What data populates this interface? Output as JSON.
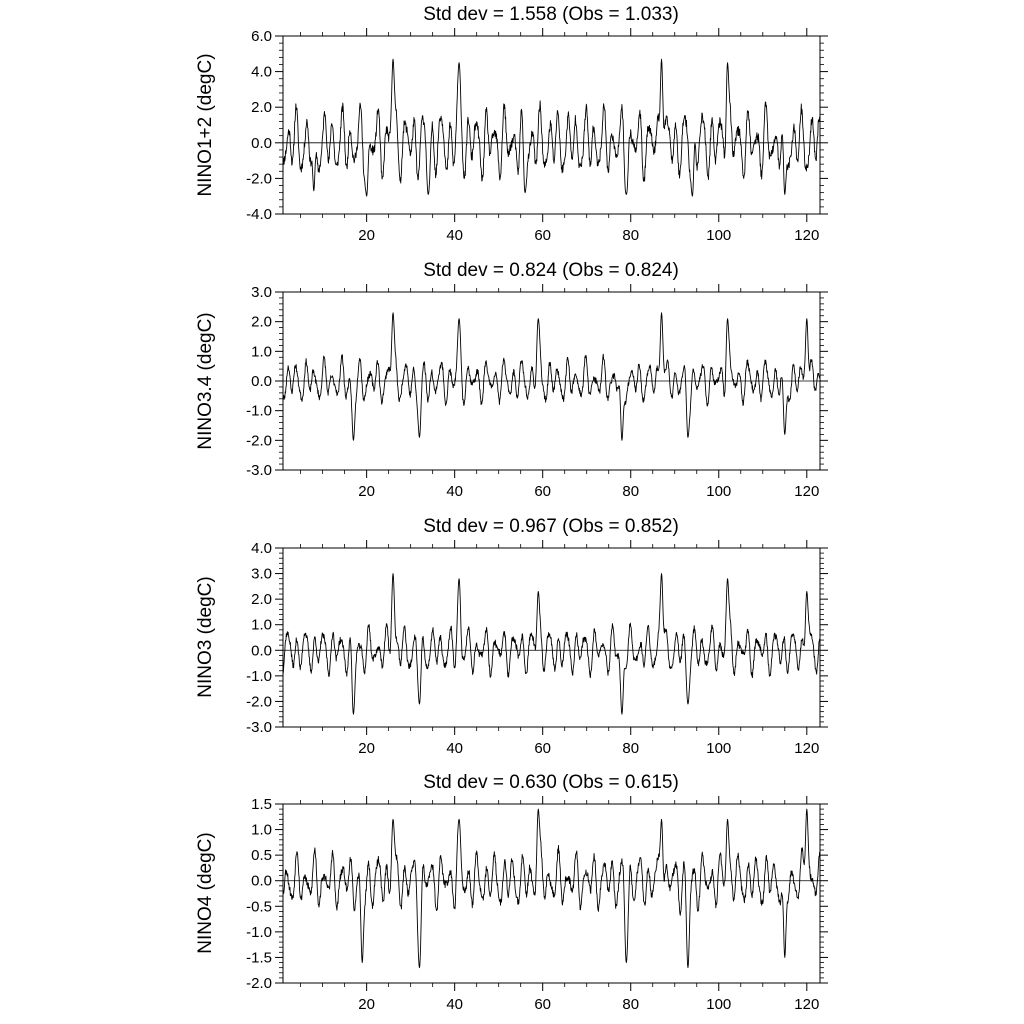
{
  "chart_data": [
    {
      "type": "line",
      "title": "Std dev = 1.558 (Obs = 1.033)",
      "xlabel": "",
      "ylabel": "NINO1+2 (degC)",
      "xlim": [
        1,
        123
      ],
      "ylim": [
        -4.0,
        6.0
      ],
      "xticks": [
        20,
        40,
        60,
        80,
        100,
        120
      ],
      "yticks": [
        6.0,
        4.0,
        2.0,
        0.0,
        -2.0,
        -4.0
      ],
      "ytick_labels": [
        "6.0",
        "4.0",
        "2.0",
        "0.0",
        "-2.0",
        "-4.0"
      ],
      "reference_line": 0.0,
      "x_range": [
        1,
        123
      ],
      "amplitude": 2.2,
      "peaks": [
        [
          26,
          4.7
        ],
        [
          41,
          4.5
        ],
        [
          87,
          4.7
        ],
        [
          102,
          4.5
        ]
      ],
      "troughs": [
        [
          8,
          -2.7
        ],
        [
          20,
          -3.0
        ],
        [
          34,
          -2.9
        ],
        [
          56,
          -2.8
        ],
        [
          79,
          -2.9
        ],
        [
          94,
          -3.0
        ],
        [
          115,
          -2.9
        ]
      ],
      "seed": 11
    },
    {
      "type": "line",
      "title": "Std dev = 0.824 (Obs = 0.824)",
      "xlabel": "",
      "ylabel": "NINO3.4 (degC)",
      "xlim": [
        1,
        123
      ],
      "ylim": [
        -3.0,
        3.0
      ],
      "xticks": [
        20,
        40,
        60,
        80,
        100,
        120
      ],
      "yticks": [
        3.0,
        2.0,
        1.0,
        0.0,
        -1.0,
        -2.0,
        -3.0
      ],
      "ytick_labels": [
        "3.0",
        "2.0",
        "1.0",
        "0.0",
        "-1.0",
        "-2.0",
        "-3.0"
      ],
      "reference_line": 0.0,
      "x_range": [
        1,
        123
      ],
      "amplitude": 0.8,
      "peaks": [
        [
          26,
          2.3
        ],
        [
          41,
          2.1
        ],
        [
          59,
          2.1
        ],
        [
          87,
          2.3
        ],
        [
          102,
          2.1
        ],
        [
          120,
          2.1
        ]
      ],
      "troughs": [
        [
          17,
          -2.0
        ],
        [
          32,
          -1.9
        ],
        [
          78,
          -2.0
        ],
        [
          93,
          -1.9
        ],
        [
          115,
          -1.8
        ]
      ],
      "seed": 23
    },
    {
      "type": "line",
      "title": "Std dev = 0.967 (Obs = 0.852)",
      "xlabel": "",
      "ylabel": "NINO3 (degC)",
      "xlim": [
        1,
        123
      ],
      "ylim": [
        -3.0,
        4.0
      ],
      "xticks": [
        20,
        40,
        60,
        80,
        100,
        120
      ],
      "yticks": [
        4.0,
        3.0,
        2.0,
        1.0,
        0.0,
        -1.0,
        -2.0,
        -3.0
      ],
      "ytick_labels": [
        "4.0",
        "3.0",
        "2.0",
        "1.0",
        "0.0",
        "-1.0",
        "-2.0",
        "-3.0"
      ],
      "reference_line": 0.0,
      "x_range": [
        1,
        123
      ],
      "amplitude": 1.0,
      "peaks": [
        [
          26,
          3.0
        ],
        [
          41,
          2.8
        ],
        [
          59,
          2.3
        ],
        [
          87,
          3.0
        ],
        [
          102,
          2.8
        ],
        [
          120,
          2.3
        ]
      ],
      "troughs": [
        [
          17,
          -2.5
        ],
        [
          32,
          -2.1
        ],
        [
          78,
          -2.5
        ],
        [
          93,
          -2.1
        ]
      ],
      "seed": 37
    },
    {
      "type": "line",
      "title": "Std dev = 0.630 (Obs = 0.615)",
      "xlabel": "",
      "ylabel": "NINO4 (degC)",
      "xlim": [
        1,
        123
      ],
      "ylim": [
        -2.0,
        1.5
      ],
      "xticks": [
        20,
        40,
        60,
        80,
        100,
        120
      ],
      "yticks": [
        1.5,
        1.0,
        0.5,
        0.0,
        -0.5,
        -1.0,
        -1.5,
        -2.0
      ],
      "ytick_labels": [
        "1.5",
        "1.0",
        "0.5",
        "0.0",
        "-0.5",
        "-1.0",
        "-1.5",
        "-2.0"
      ],
      "reference_line": 0.0,
      "x_range": [
        1,
        123
      ],
      "amplitude": 0.6,
      "peaks": [
        [
          26,
          1.2
        ],
        [
          41,
          1.2
        ],
        [
          59,
          1.4
        ],
        [
          87,
          1.2
        ],
        [
          102,
          1.2
        ],
        [
          120,
          1.4
        ]
      ],
      "troughs": [
        [
          19,
          -1.6
        ],
        [
          32,
          -1.7
        ],
        [
          79,
          -1.6
        ],
        [
          93,
          -1.7
        ],
        [
          115,
          -1.5
        ]
      ],
      "seed": 53
    }
  ]
}
